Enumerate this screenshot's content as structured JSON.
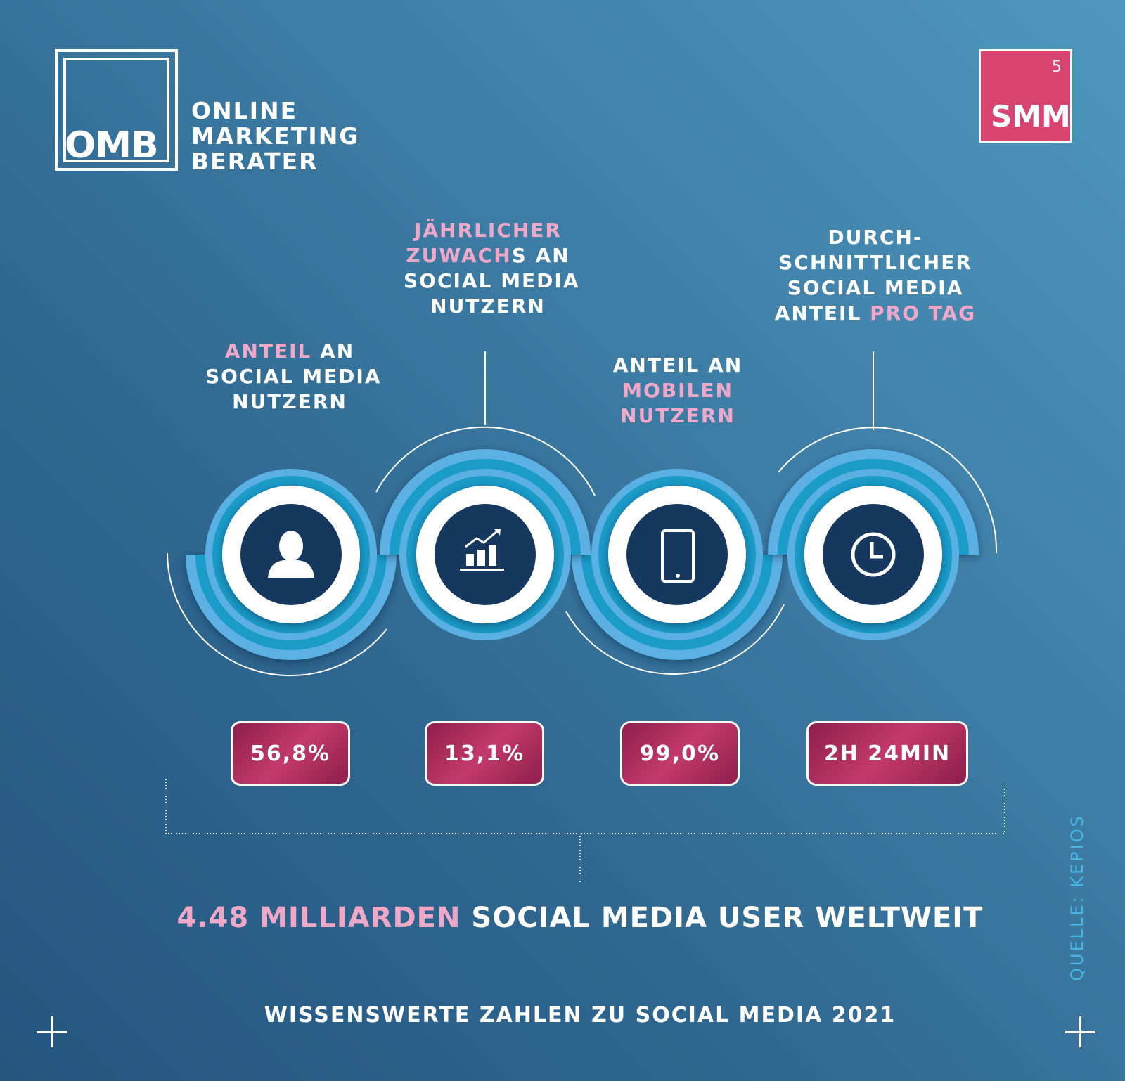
{
  "logo": {
    "abbr": "OMB",
    "lines": [
      "ONLINE",
      "MARKETING",
      "BERATER"
    ]
  },
  "badge": {
    "number": "5",
    "label": "SMM"
  },
  "stats": [
    {
      "label_lines": [
        [
          {
            "t": "ANTEIL",
            "pink": true
          },
          {
            "t": " AN",
            "pink": false
          }
        ],
        [
          {
            "t": "SOCIAL MEDIA",
            "pink": false
          }
        ],
        [
          {
            "t": "NUTZERN",
            "pink": false
          }
        ]
      ],
      "icon": "user-icon",
      "value": "56,8%"
    },
    {
      "label_lines": [
        [
          {
            "t": "JÄHRLICHER",
            "pink": true
          }
        ],
        [
          {
            "t": "ZUWACH",
            "pink": true
          },
          {
            "t": "S AN",
            "pink": false
          }
        ],
        [
          {
            "t": "SOCIAL MEDIA",
            "pink": false
          }
        ],
        [
          {
            "t": "NUTZERN",
            "pink": false
          }
        ]
      ],
      "icon": "growth-chart-icon",
      "value": "13,1%"
    },
    {
      "label_lines": [
        [
          {
            "t": "ANTEIL AN",
            "pink": false
          }
        ],
        [
          {
            "t": "MOBILEN",
            "pink": true
          }
        ],
        [
          {
            "t": "NUTZERN",
            "pink": true
          }
        ]
      ],
      "icon": "smartphone-icon",
      "value": "99,0%"
    },
    {
      "label_lines": [
        [
          {
            "t": "DURCH-",
            "pink": false
          }
        ],
        [
          {
            "t": "SCHNITTLICHER",
            "pink": false
          }
        ],
        [
          {
            "t": "SOCIAL MEDIA",
            "pink": false
          }
        ],
        [
          {
            "t": "ANTEIL ",
            "pink": false
          },
          {
            "t": "PRO TAG",
            "pink": true
          }
        ]
      ],
      "icon": "clock-icon",
      "value": "2H 24MIN"
    }
  ],
  "headline": {
    "highlight": "4.48 MILLIARDEN",
    "rest": " SOCIAL MEDIA USER WELTWEIT"
  },
  "footer": "WISSENSWERTE ZAHLEN ZU SOCIAL MEDIA 2021",
  "source": "QUELLE: KEPIOS",
  "colors": {
    "pink": "#f0a8c9",
    "accent": "#d9436f",
    "ring_outer": "#5bb0e3",
    "ring_inner": "#1a9bc8",
    "icon_bg": "#16375e"
  }
}
